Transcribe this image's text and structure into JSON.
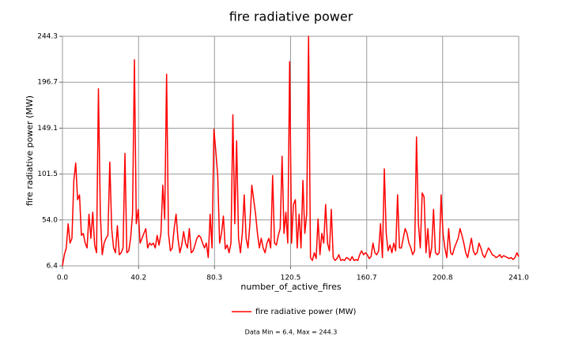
{
  "chart_data": {
    "type": "line",
    "title": "fire radiative power",
    "x_label": "number_of_active_fires",
    "y_label": "fire radiative power (MW)",
    "footer": "Data Min = 6.4, Max = 244.3",
    "x": [
      0,
      1,
      2,
      3,
      4,
      5,
      6,
      7,
      8,
      9,
      10,
      11,
      12,
      13,
      14,
      15,
      16,
      17,
      18,
      19,
      20,
      21,
      22,
      23,
      24,
      25,
      26,
      27,
      28,
      29,
      30,
      31,
      32,
      33,
      34,
      35,
      36,
      37,
      38,
      39,
      40,
      41,
      42,
      43,
      44,
      45,
      46,
      47,
      48,
      49,
      50,
      51,
      52,
      53,
      54,
      55,
      56,
      57,
      58,
      59,
      60,
      61,
      62,
      63,
      64,
      65,
      66,
      67,
      68,
      69,
      70,
      71,
      72,
      73,
      74,
      75,
      76,
      77,
      78,
      79,
      80,
      81,
      82,
      83,
      84,
      85,
      86,
      87,
      88,
      89,
      90,
      91,
      92,
      93,
      94,
      95,
      96,
      97,
      98,
      99,
      100,
      101,
      102,
      103,
      104,
      105,
      106,
      107,
      108,
      109,
      110,
      111,
      112,
      113,
      114,
      115,
      116,
      117,
      118,
      119,
      120,
      121,
      122,
      123,
      124,
      125,
      126,
      127,
      128,
      129,
      130,
      131,
      132,
      133,
      134,
      135,
      136,
      137,
      138,
      139,
      140,
      141,
      142,
      143,
      144,
      145,
      146,
      147,
      148,
      149,
      150,
      151,
      152,
      153,
      154,
      155,
      156,
      157,
      158,
      159,
      160,
      161,
      162,
      163,
      164,
      165,
      166,
      167,
      168,
      169,
      170,
      171,
      172,
      173,
      174,
      175,
      176,
      177,
      178,
      179,
      180,
      181,
      182,
      183,
      184,
      185,
      186,
      187,
      188,
      189,
      190,
      191,
      192,
      193,
      194,
      195,
      196,
      197,
      198,
      199,
      200,
      201,
      202,
      203,
      204,
      205,
      206,
      207,
      208,
      209,
      210,
      211,
      212,
      213,
      214,
      215,
      216,
      217,
      218,
      219,
      220,
      221,
      222,
      223,
      224,
      225,
      226,
      227,
      228,
      229,
      230,
      231,
      232,
      233,
      234,
      235,
      236,
      237,
      238,
      239,
      240,
      241
    ],
    "series": [
      {
        "name": "fire radiative power (MW)",
        "color": "#ff0000",
        "values": [
          6.4,
          18,
          25,
          50,
          30,
          35,
          95,
          113,
          75,
          80,
          38,
          40,
          30,
          25,
          60,
          35,
          62,
          28,
          20,
          190,
          60,
          18,
          30,
          35,
          38,
          114,
          45,
          25,
          20,
          48,
          18,
          20,
          25,
          123,
          20,
          22,
          35,
          60,
          220,
          50,
          65,
          30,
          35,
          40,
          45,
          25,
          30,
          28,
          30,
          25,
          38,
          28,
          40,
          90,
          55,
          205,
          40,
          22,
          25,
          45,
          60,
          35,
          20,
          28,
          42,
          30,
          25,
          45,
          20,
          22,
          28,
          35,
          38,
          36,
          30,
          25,
          30,
          15,
          60,
          25,
          148,
          125,
          100,
          30,
          40,
          58,
          24,
          28,
          20,
          30,
          163,
          50,
          136,
          35,
          20,
          40,
          80,
          35,
          25,
          50,
          90,
          75,
          60,
          40,
          25,
          35,
          25,
          20,
          30,
          35,
          25,
          100,
          30,
          28,
          38,
          45,
          120,
          40,
          62,
          30,
          218,
          30,
          70,
          75,
          25,
          60,
          25,
          95,
          40,
          60,
          244.3,
          15,
          12,
          20,
          14,
          55,
          18,
          40,
          30,
          70,
          30,
          22,
          65,
          15,
          12,
          14,
          18,
          12,
          13,
          12,
          15,
          14,
          12,
          16,
          12,
          13,
          12,
          18,
          22,
          18,
          20,
          18,
          14,
          16,
          30,
          20,
          18,
          22,
          50,
          15,
          107,
          40,
          22,
          28,
          20,
          30,
          22,
          80,
          25,
          25,
          35,
          45,
          40,
          30,
          25,
          18,
          22,
          140,
          50,
          25,
          82,
          78,
          20,
          45,
          15,
          25,
          65,
          20,
          18,
          20,
          80,
          40,
          25,
          15,
          45,
          20,
          18,
          25,
          30,
          35,
          45,
          38,
          30,
          20,
          15,
          25,
          35,
          22,
          18,
          20,
          30,
          25,
          18,
          15,
          20,
          25,
          22,
          18,
          17,
          15,
          16,
          18,
          15,
          17,
          16,
          15,
          14,
          15,
          13,
          15,
          20,
          16
        ]
      }
    ],
    "xlim": [
      0,
      241
    ],
    "ylim": [
      6.4,
      244.3
    ],
    "xticks": [
      {
        "value": 0,
        "label": "0.0"
      },
      40.2,
      80.3,
      120.5,
      160.7,
      200.8,
      {
        "value": 241,
        "label": "241.0"
      }
    ],
    "yticks": [
      6.4,
      {
        "value": 54,
        "label": "54.0"
      },
      101.5,
      149.1,
      196.7,
      244.3
    ],
    "grid": true,
    "legend": "bottom"
  }
}
